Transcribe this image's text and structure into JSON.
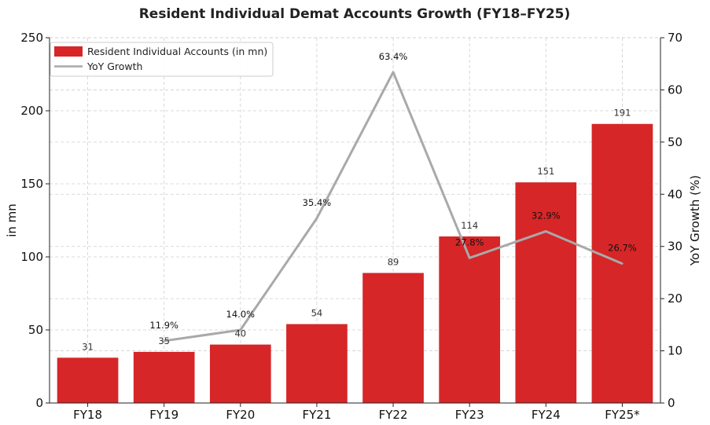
{
  "chart_data": {
    "type": "bar",
    "title": "Resident Individual Demat Accounts Growth (FY18–FY25)",
    "categories": [
      "FY18",
      "FY19",
      "FY20",
      "FY21",
      "FY22",
      "FY23",
      "FY24",
      "FY25*"
    ],
    "series": [
      {
        "name": "Resident Individual Accounts (in mn)",
        "type": "bar",
        "axis": "left",
        "color": "#d62628",
        "values": [
          31,
          35,
          40,
          54,
          89,
          114,
          151,
          191
        ],
        "labels": [
          "31",
          "35",
          "40",
          "54",
          "89",
          "114",
          "151",
          "191"
        ]
      },
      {
        "name": "YoY Growth",
        "type": "line",
        "axis": "right",
        "color": "#a9a9a9",
        "values": [
          null,
          11.9,
          14.0,
          35.4,
          63.4,
          27.8,
          32.9,
          26.7
        ],
        "labels": [
          "",
          "11.9%",
          "14.0%",
          "35.4%",
          "63.4%",
          "27.8%",
          "32.9%",
          "26.7%"
        ]
      }
    ],
    "ylabel": "in mn",
    "y2label": "YoY Growth (%)",
    "xlabel": "",
    "ylim": [
      0,
      250
    ],
    "y2lim": [
      0,
      70
    ],
    "yticks": [
      0,
      50,
      100,
      150,
      200,
      250
    ],
    "y2ticks": [
      0,
      10,
      20,
      30,
      40,
      50,
      60,
      70
    ],
    "grid": true,
    "legend": "top-left"
  }
}
